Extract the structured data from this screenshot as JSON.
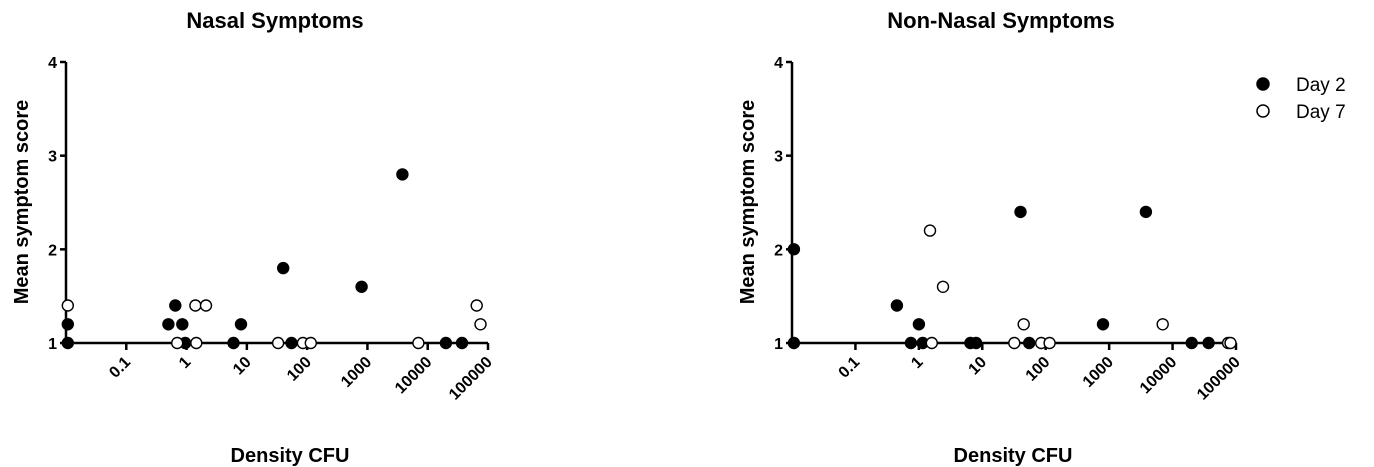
{
  "chart_data": [
    {
      "type": "scatter",
      "title": "Nasal Symptoms",
      "xlabel": "Density CFU",
      "ylabel": "Mean symptom score",
      "xscale": "log",
      "xlim": [
        0.01,
        100000
      ],
      "ylim": [
        1,
        4
      ],
      "xticks": [
        "0.1",
        "1",
        "10",
        "100",
        "1000",
        "10000",
        "100000"
      ],
      "yticks": [
        "1",
        "2",
        "3",
        "4"
      ],
      "legend": "none",
      "series": [
        {
          "name": "Day 2",
          "marker": "filled-circle",
          "color": "#000000",
          "x": [
            0.0107,
            0.0107,
            0.5,
            0.65,
            0.85,
            0.95,
            6,
            8,
            40,
            55,
            800,
            3800,
            20000,
            37000
          ],
          "y": [
            1.0,
            1.2,
            1.2,
            1.4,
            1.2,
            1.0,
            1.0,
            1.2,
            1.8,
            1.0,
            1.6,
            2.8,
            1.0,
            1.0
          ]
        },
        {
          "name": "Day 7",
          "marker": "open-circle",
          "color": "#000000",
          "x": [
            0.0107,
            0.7,
            1.4,
            1.45,
            2.1,
            33,
            85,
            115,
            7000,
            65000,
            75000
          ],
          "y": [
            1.4,
            1.0,
            1.4,
            1.0,
            1.4,
            1.0,
            1.0,
            1.0,
            1.0,
            1.4,
            1.2
          ]
        }
      ]
    },
    {
      "type": "scatter",
      "title": "Non-Nasal Symptoms",
      "xlabel": "Density CFU",
      "ylabel": "Mean symptom score",
      "xscale": "log",
      "xlim": [
        0.01,
        100000
      ],
      "ylim": [
        1,
        4
      ],
      "xticks": [
        "0.1",
        "1",
        "10",
        "100",
        "1000",
        "10000",
        "100000"
      ],
      "yticks": [
        "1",
        "2",
        "3",
        "4"
      ],
      "legend": "top-right",
      "series": [
        {
          "name": "Day 2",
          "marker": "filled-circle",
          "color": "#000000",
          "x": [
            0.0107,
            0.0107,
            0.45,
            0.75,
            1.0,
            1.15,
            6.5,
            8,
            40,
            55,
            800,
            3800,
            20000,
            37000
          ],
          "y": [
            2.0,
            1.0,
            1.4,
            1.0,
            1.2,
            1.0,
            1.0,
            1.0,
            2.4,
            1.0,
            1.2,
            2.4,
            1.0,
            1.0
          ]
        },
        {
          "name": "Day 7",
          "marker": "open-circle",
          "color": "#000000",
          "x": [
            1.5,
            1.6,
            2.4,
            32,
            45,
            85,
            115,
            7000,
            75000,
            82000
          ],
          "y": [
            2.2,
            1.0,
            1.6,
            1.0,
            1.2,
            1.0,
            1.0,
            1.2,
            1.0,
            1.0
          ]
        }
      ]
    }
  ]
}
